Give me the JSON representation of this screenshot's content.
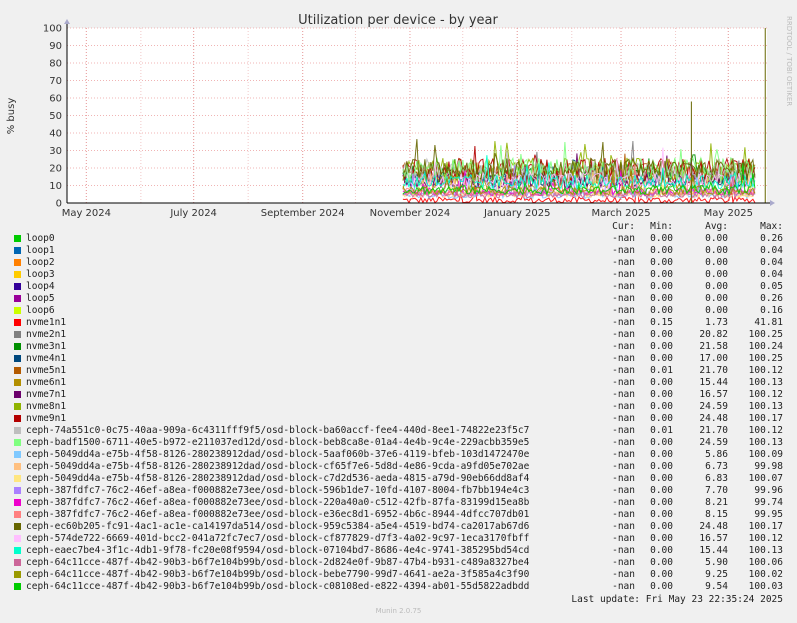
{
  "chart_data": {
    "type": "line",
    "title": "Utilization per device - by year",
    "ylabel": "% busy",
    "ylim": [
      0,
      100
    ],
    "yticks": [
      "0",
      "10",
      "20",
      "30",
      "40",
      "50",
      "60",
      "70",
      "80",
      "90",
      "100"
    ],
    "xticks": [
      "May 2024",
      "July 2024",
      "September 2024",
      "November 2024",
      "January 2025",
      "March 2025",
      "May 2025"
    ],
    "x_range": [
      "2024-04-20",
      "2025-05-23"
    ],
    "grid": true,
    "series": [
      {
        "name": "loop0",
        "color": "#00cc00",
        "cur": "-nan",
        "min": "0.00",
        "avg": "0.00",
        "max": "0.26",
        "level": 0
      },
      {
        "name": "loop1",
        "color": "#0066b3",
        "cur": "-nan",
        "min": "0.00",
        "avg": "0.00",
        "max": "0.04",
        "level": 0
      },
      {
        "name": "loop2",
        "color": "#ff8000",
        "cur": "-nan",
        "min": "0.00",
        "avg": "0.00",
        "max": "0.04",
        "level": 0
      },
      {
        "name": "loop3",
        "color": "#ffcc00",
        "cur": "-nan",
        "min": "0.00",
        "avg": "0.00",
        "max": "0.04",
        "level": 0
      },
      {
        "name": "loop4",
        "color": "#330099",
        "cur": "-nan",
        "min": "0.00",
        "avg": "0.00",
        "max": "0.05",
        "level": 0
      },
      {
        "name": "loop5",
        "color": "#990099",
        "cur": "-nan",
        "min": "0.00",
        "avg": "0.00",
        "max": "0.26",
        "level": 0
      },
      {
        "name": "loop6",
        "color": "#ccff00",
        "cur": "-nan",
        "min": "0.00",
        "avg": "0.00",
        "max": "0.16",
        "level": 0
      },
      {
        "name": "nvme1n1",
        "color": "#ff0000",
        "cur": "-nan",
        "min": "0.15",
        "avg": "1.73",
        "max": "41.81",
        "level": 1.73
      },
      {
        "name": "nvme2n1",
        "color": "#808080",
        "cur": "-nan",
        "min": "0.00",
        "avg": "20.82",
        "max": "100.25",
        "level": 20.82
      },
      {
        "name": "nvme3n1",
        "color": "#008f00",
        "cur": "-nan",
        "min": "0.00",
        "avg": "21.58",
        "max": "100.24",
        "level": 21.58
      },
      {
        "name": "nvme4n1",
        "color": "#00487d",
        "cur": "-nan",
        "min": "0.00",
        "avg": "17.00",
        "max": "100.25",
        "level": 17.0
      },
      {
        "name": "nvme5n1",
        "color": "#b35a00",
        "cur": "-nan",
        "min": "0.01",
        "avg": "21.70",
        "max": "100.12",
        "level": 21.7
      },
      {
        "name": "nvme6n1",
        "color": "#b38f00",
        "cur": "-nan",
        "min": "0.00",
        "avg": "15.44",
        "max": "100.13",
        "level": 15.44
      },
      {
        "name": "nvme7n1",
        "color": "#6b006b",
        "cur": "-nan",
        "min": "0.00",
        "avg": "16.57",
        "max": "100.12",
        "level": 16.57
      },
      {
        "name": "nvme8n1",
        "color": "#8fb300",
        "cur": "-nan",
        "min": "0.00",
        "avg": "24.59",
        "max": "100.13",
        "level": 24.59
      },
      {
        "name": "nvme9n1",
        "color": "#b30000",
        "cur": "-nan",
        "min": "0.00",
        "avg": "24.48",
        "max": "100.17",
        "level": 24.48
      },
      {
        "name": "ceph-74a551c0-0c75-40aa-909a-6c4311fff9f5/osd-block-ba60accf-fee4-440d-8ee1-74822e23f5c7",
        "color": "#bebebe",
        "cur": "-nan",
        "min": "0.01",
        "avg": "21.70",
        "max": "100.12",
        "level": 21.7
      },
      {
        "name": "ceph-badf1500-6711-40e5-b972-e211037ed12d/osd-block-beb8ca8e-01a4-4e4b-9c4e-229acbb359e5",
        "color": "#80ff80",
        "cur": "-nan",
        "min": "0.00",
        "avg": "24.59",
        "max": "100.13",
        "level": 24.59
      },
      {
        "name": "ceph-5049dd4a-e75b-4f58-8126-280238912dad/osd-block-5aaf060b-37e6-4119-bfeb-103d1472470e",
        "color": "#80c9ff",
        "cur": "-nan",
        "min": "0.00",
        "avg": "5.86",
        "max": "100.09",
        "level": 5.86
      },
      {
        "name": "ceph-5049dd4a-e75b-4f58-8126-280238912dad/osd-block-cf65f7e6-5d8d-4e86-9cda-a9fd05e702ae",
        "color": "#ffc080",
        "cur": "-nan",
        "min": "0.00",
        "avg": "6.73",
        "max": "99.98",
        "level": 6.73
      },
      {
        "name": "ceph-5049dd4a-e75b-4f58-8126-280238912dad/osd-block-c7d2d536-aeda-4815-a79d-90eb66dd8af4",
        "color": "#ffe680",
        "cur": "-nan",
        "min": "0.00",
        "avg": "6.83",
        "max": "100.07",
        "level": 6.83
      },
      {
        "name": "ceph-387fdfc7-76c2-46ef-a8ea-f000882e73ee/osd-block-596b1de7-10fd-4107-8004-fb7bb194e4c3",
        "color": "#aa80ff",
        "cur": "-nan",
        "min": "0.00",
        "avg": "7.70",
        "max": "99.96",
        "level": 7.7
      },
      {
        "name": "ceph-387fdfc7-76c2-46ef-a8ea-f000882e73ee/osd-block-220a40a0-c512-42fb-87fa-83199d15ea8b",
        "color": "#ee00cc",
        "cur": "-nan",
        "min": "0.00",
        "avg": "8.21",
        "max": "99.74",
        "level": 8.21
      },
      {
        "name": "ceph-387fdfc7-76c2-46ef-a8ea-f000882e73ee/osd-block-e36ec8d1-6952-4b6c-8944-4dfcc707db01",
        "color": "#ff8080",
        "cur": "-nan",
        "min": "0.00",
        "avg": "8.15",
        "max": "99.95",
        "level": 8.15
      },
      {
        "name": "ceph-ec60b205-fc91-4ac1-ac1e-ca14197da514/osd-block-959c5384-a5e4-4519-bd74-ca2017ab67d6",
        "color": "#666600",
        "cur": "-nan",
        "min": "0.00",
        "avg": "24.48",
        "max": "100.17",
        "level": 24.48
      },
      {
        "name": "ceph-574de722-6669-401d-bcc2-041a72fc7ec7/osd-block-cf877829-d7f3-4a02-9c97-1eca3170fbff",
        "color": "#ffbfff",
        "cur": "-nan",
        "min": "0.00",
        "avg": "16.57",
        "max": "100.12",
        "level": 16.57
      },
      {
        "name": "ceph-eaec7be4-3f1c-4db1-9f78-fc20e08f9594/osd-block-07104bd7-8686-4e4c-9741-385295bd54cd",
        "color": "#00ffcc",
        "cur": "-nan",
        "min": "0.00",
        "avg": "15.44",
        "max": "100.13",
        "level": 15.44
      },
      {
        "name": "ceph-64c11cce-487f-4b42-90b3-b6f7e104b99b/osd-block-2d824e0f-9b87-47b4-b931-c489a8327be4",
        "color": "#cc6699",
        "cur": "-nan",
        "min": "0.00",
        "avg": "5.90",
        "max": "100.06",
        "level": 5.9
      },
      {
        "name": "ceph-64c11cce-487f-4b42-90b3-b6f7e104b99b/osd-block-bebe7790-99d7-4641-ae2a-3f585a4c3f90",
        "color": "#999900",
        "cur": "-nan",
        "min": "0.00",
        "avg": "9.25",
        "max": "100.02",
        "level": 9.25
      },
      {
        "name": "ceph-64c11cce-487f-4b42-90b3-b6f7e104b99b/osd-block-c08108ed-e822-4394-ab01-55d5822adbdd",
        "color": "#00cc00",
        "cur": "-nan",
        "min": "0.00",
        "avg": "9.54",
        "max": "100.03",
        "level": 9.54
      }
    ],
    "data_start": "2024-10-28",
    "spikes": [
      {
        "date": "2025-04-10",
        "value": 58
      },
      {
        "date": "2025-05-22",
        "value": 100
      }
    ]
  },
  "legend_header": {
    "cur": "Cur:",
    "min": "Min:",
    "avg": "Avg:",
    "max": "Max:"
  },
  "last_update": "Last update:  Fri May 23 22:35:24 2025",
  "side_credit": "RRDTOOL / TOBI OETIKER",
  "footer": "Munin 2.0.75"
}
